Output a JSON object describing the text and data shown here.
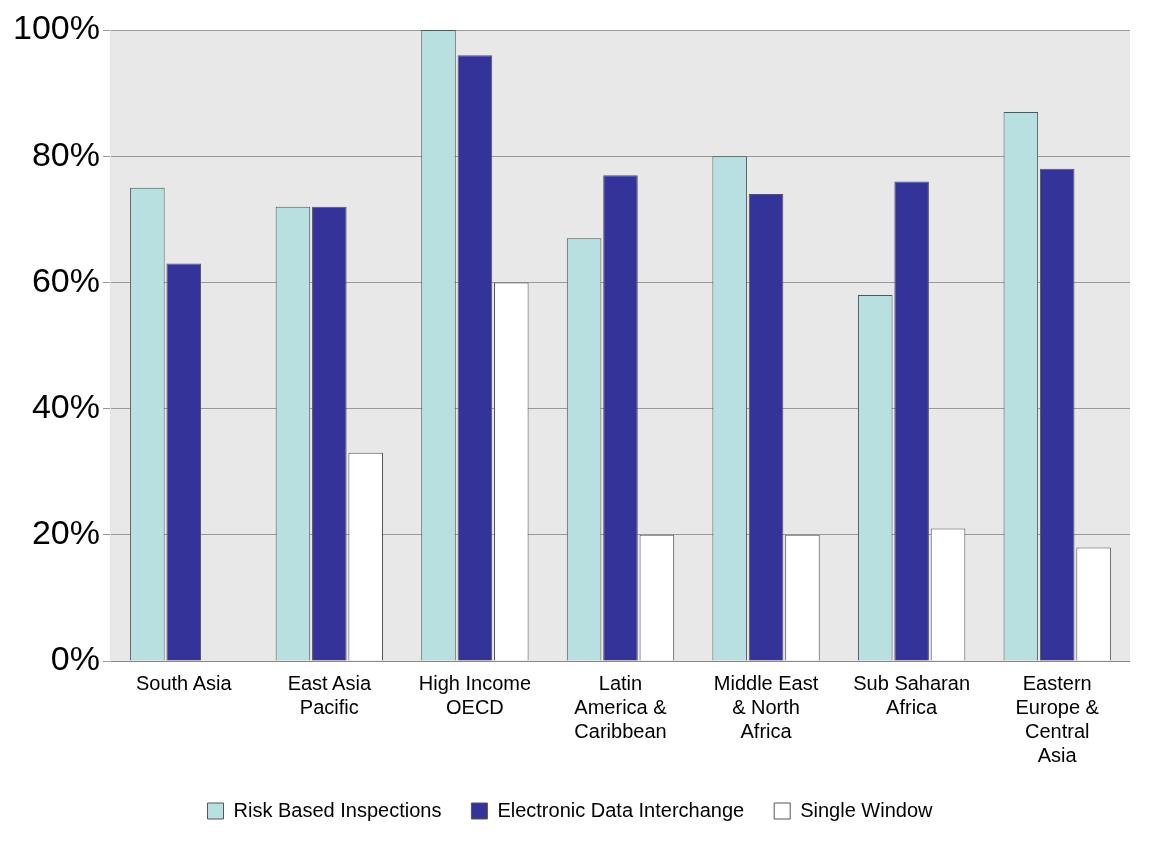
{
  "chart_data": {
    "type": "bar",
    "categories": [
      "South Asia",
      "East Asia Pacific",
      "High Income OECD",
      "Latin America & Caribbean",
      "Middle East & North Africa",
      "Sub Saharan Africa",
      "Eastern Europe & Central Asia"
    ],
    "series": [
      {
        "name": "Risk Based Inspections",
        "color": "#b9e0e0",
        "values": [
          75,
          72,
          100,
          67,
          80,
          58,
          87
        ]
      },
      {
        "name": "Electronic Data Interchange",
        "color": "#333399",
        "values": [
          63,
          72,
          96,
          77,
          74,
          76,
          78
        ]
      },
      {
        "name": "Single Window",
        "color": "#ffffff",
        "values": [
          0,
          33,
          60,
          20,
          20,
          21,
          18
        ]
      }
    ],
    "ylim": [
      0,
      100
    ],
    "yticks": [
      {
        "value": 0,
        "label": "0%"
      },
      {
        "value": 20,
        "label": "20%"
      },
      {
        "value": 40,
        "label": "40%"
      },
      {
        "value": 60,
        "label": "60%"
      },
      {
        "value": 80,
        "label": "80%"
      },
      {
        "value": 100,
        "label": "100%"
      }
    ],
    "grid": "y",
    "legend": "bottom"
  }
}
